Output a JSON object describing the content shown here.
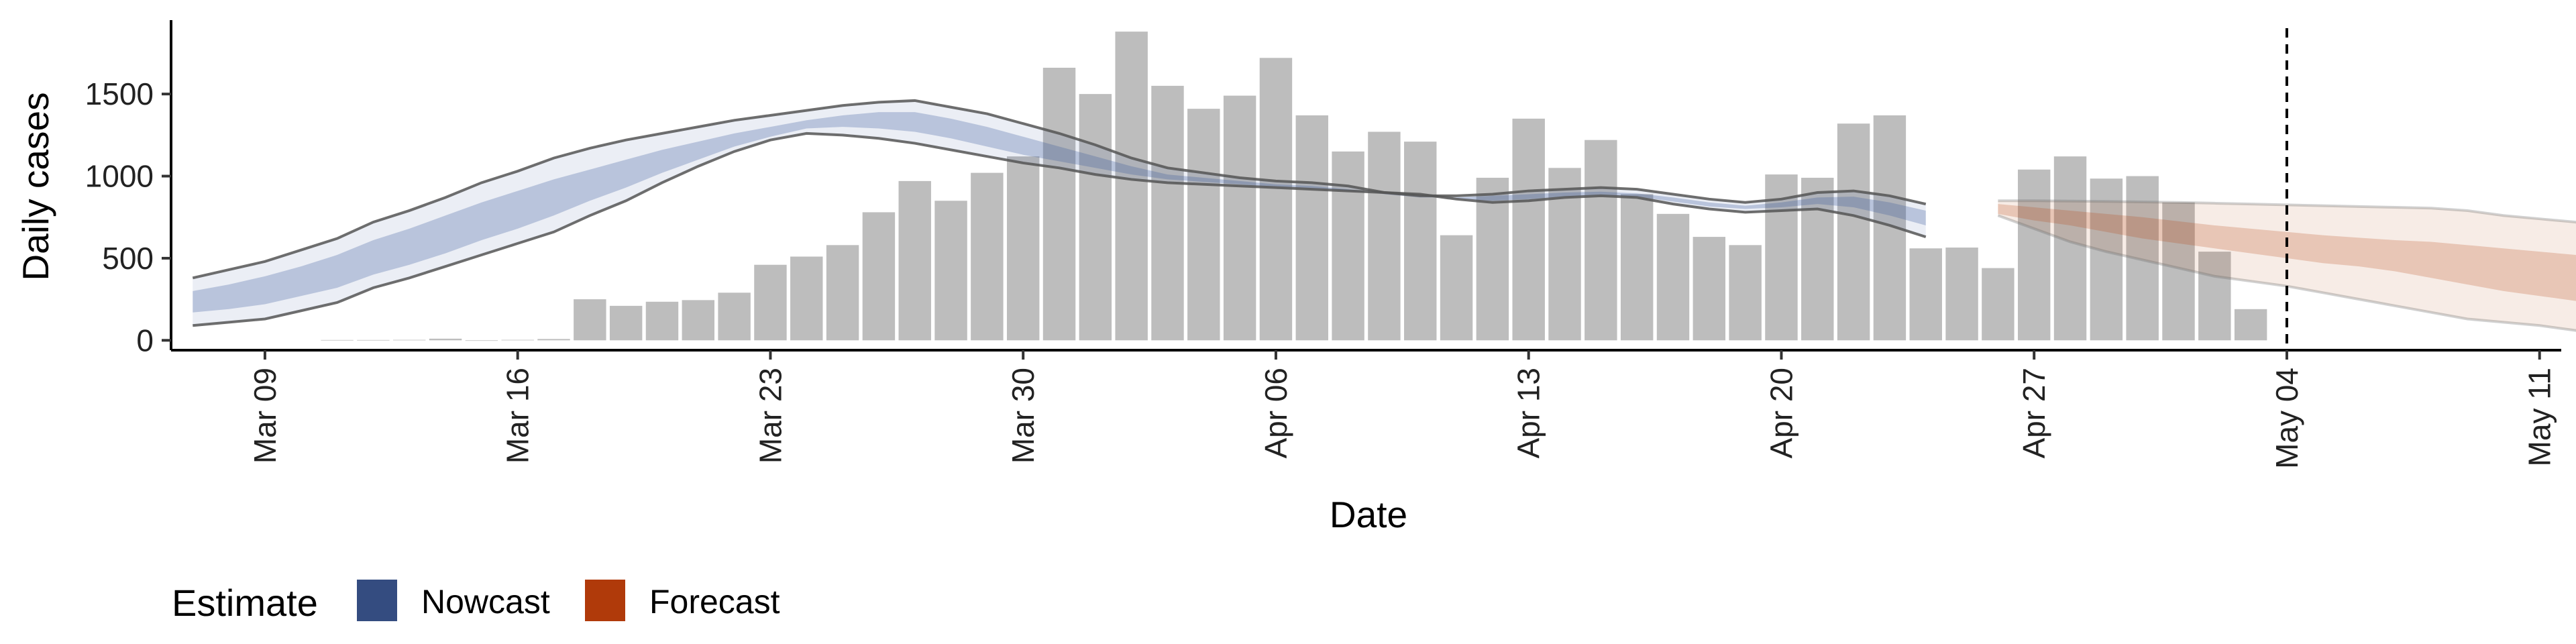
{
  "chart_data": {
    "type": "bar",
    "xlabel": "Date",
    "ylabel": "Daily cases",
    "ylim": [
      -60,
      1950
    ],
    "yticks": [
      0,
      500,
      1000,
      1500
    ],
    "start_date": "2020-03-07",
    "end_date": "2020-05-11",
    "x_ticks": [
      {
        "date": "2020-03-09",
        "label": "Mar 09"
      },
      {
        "date": "2020-03-16",
        "label": "Mar 16"
      },
      {
        "date": "2020-03-23",
        "label": "Mar 23"
      },
      {
        "date": "2020-03-30",
        "label": "Mar 30"
      },
      {
        "date": "2020-04-06",
        "label": "Apr 06"
      },
      {
        "date": "2020-04-13",
        "label": "Apr 13"
      },
      {
        "date": "2020-04-20",
        "label": "Apr 20"
      },
      {
        "date": "2020-04-27",
        "label": "Apr 27"
      },
      {
        "date": "2020-05-04",
        "label": "May 04"
      },
      {
        "date": "2020-05-11",
        "label": "May 11"
      }
    ],
    "reference_line": {
      "date": "2020-05-04",
      "style": "dashed"
    },
    "bars": {
      "name": "Daily cases",
      "color": "#bdbdbd",
      "start_date": "2020-03-11",
      "values": [
        2,
        2,
        3,
        10,
        0,
        3,
        8,
        250,
        210,
        235,
        245,
        290,
        460,
        510,
        580,
        780,
        970,
        850,
        1020,
        1120,
        1660,
        1500,
        1880,
        1550,
        1410,
        1490,
        1720,
        1370,
        1150,
        1270,
        1210,
        640,
        990,
        1350,
        1050,
        1220,
        890,
        770,
        630,
        580,
        1010,
        990,
        1320,
        1370,
        560,
        565,
        440,
        1040,
        1120,
        985,
        1000,
        840,
        540,
        190
      ]
    },
    "nowcast": {
      "name": "Nowcast",
      "color": "#3a5a9c",
      "start_date": "2020-03-07",
      "outer_upper": [
        380,
        430,
        480,
        550,
        620,
        720,
        790,
        870,
        960,
        1030,
        1110,
        1170,
        1220,
        1260,
        1300,
        1340,
        1370,
        1400,
        1430,
        1450,
        1460,
        1420,
        1380,
        1320,
        1260,
        1190,
        1110,
        1050,
        1020,
        990,
        970,
        960,
        940,
        900,
        880,
        880,
        890,
        910,
        920,
        930,
        920,
        890,
        860,
        840,
        860,
        900,
        910,
        880,
        830
      ],
      "outer_lower": [
        90,
        110,
        130,
        180,
        230,
        320,
        380,
        450,
        520,
        590,
        660,
        760,
        850,
        960,
        1060,
        1150,
        1220,
        1260,
        1250,
        1230,
        1200,
        1160,
        1120,
        1080,
        1050,
        1010,
        980,
        960,
        950,
        940,
        930,
        920,
        910,
        900,
        890,
        860,
        840,
        850,
        870,
        880,
        870,
        830,
        800,
        780,
        790,
        800,
        760,
        700,
        630
      ],
      "inner_upper": [
        300,
        340,
        390,
        450,
        520,
        610,
        680,
        760,
        840,
        910,
        980,
        1040,
        1100,
        1160,
        1210,
        1260,
        1300,
        1340,
        1370,
        1390,
        1390,
        1350,
        1300,
        1240,
        1180,
        1120,
        1060,
        1010,
        990,
        970,
        950,
        940,
        920,
        890,
        870,
        870,
        880,
        890,
        900,
        905,
        895,
        870,
        840,
        820,
        840,
        870,
        875,
        840,
        790
      ],
      "inner_lower": [
        170,
        190,
        220,
        270,
        320,
        400,
        460,
        530,
        610,
        680,
        760,
        850,
        930,
        1020,
        1100,
        1180,
        1240,
        1290,
        1300,
        1290,
        1270,
        1230,
        1180,
        1130,
        1090,
        1050,
        1010,
        980,
        965,
        950,
        935,
        925,
        910,
        895,
        880,
        860,
        850,
        860,
        875,
        885,
        875,
        845,
        815,
        800,
        810,
        830,
        810,
        760,
        700
      ]
    },
    "forecast": {
      "name": "Forecast",
      "color": "#b5410c",
      "start_date": "2020-04-26",
      "outer_upper": [
        850,
        850,
        848,
        846,
        843,
        840,
        835,
        830,
        825,
        820,
        815,
        810,
        805,
        790,
        760,
        740,
        720,
        650
      ],
      "outer_lower": [
        760,
        680,
        600,
        540,
        490,
        440,
        390,
        360,
        330,
        290,
        250,
        210,
        170,
        130,
        110,
        90,
        60,
        0
      ],
      "inner_upper": [
        830,
        810,
        790,
        770,
        750,
        725,
        700,
        680,
        660,
        640,
        625,
        610,
        600,
        580,
        560,
        540,
        520,
        490
      ],
      "inner_lower": [
        770,
        730,
        700,
        660,
        620,
        590,
        560,
        530,
        500,
        470,
        450,
        420,
        380,
        340,
        300,
        270,
        240,
        210
      ]
    }
  },
  "legend": {
    "title": "Estimate",
    "items": [
      {
        "label": "Nowcast",
        "color": "#344c80"
      },
      {
        "label": "Forecast",
        "color": "#b03a0a"
      }
    ]
  }
}
